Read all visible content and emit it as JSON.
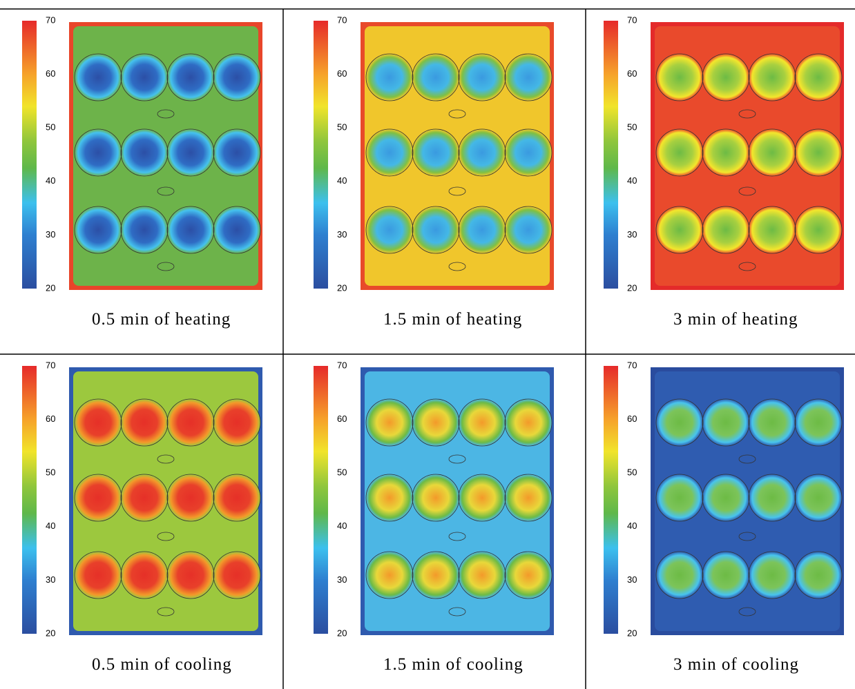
{
  "colorbar_ticks": [
    70,
    60,
    50,
    40,
    30,
    20
  ],
  "panels": [
    {
      "caption": "0.5 min of heating"
    },
    {
      "caption": "1.5 min of heating"
    },
    {
      "caption": "3 min of heating"
    },
    {
      "caption": "0.5 min of cooling"
    },
    {
      "caption": "1.5 min of cooling"
    },
    {
      "caption": "3 min of cooling"
    }
  ]
}
